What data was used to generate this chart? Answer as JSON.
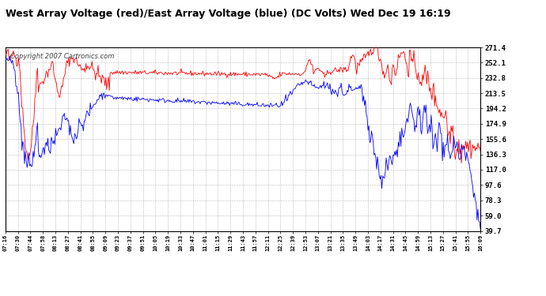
{
  "title": "West Array Voltage (red)/East Array Voltage (blue) (DC Volts) Wed Dec 19 16:19",
  "copyright": "Copyright 2007 Cartronics.com",
  "yticks": [
    39.7,
    59.0,
    78.3,
    97.6,
    117.0,
    136.3,
    155.6,
    174.9,
    194.2,
    213.5,
    232.8,
    252.1,
    271.4
  ],
  "ylim": [
    39.7,
    271.4
  ],
  "xtick_labels": [
    "07:16",
    "07:30",
    "07:44",
    "07:58",
    "08:13",
    "08:27",
    "08:41",
    "08:55",
    "09:09",
    "09:23",
    "09:37",
    "09:51",
    "10:05",
    "10:19",
    "10:33",
    "10:47",
    "11:01",
    "11:15",
    "11:29",
    "11:43",
    "11:57",
    "12:11",
    "12:25",
    "12:39",
    "12:53",
    "13:07",
    "13:21",
    "13:35",
    "13:49",
    "14:03",
    "14:17",
    "14:31",
    "14:45",
    "14:59",
    "15:13",
    "15:27",
    "15:41",
    "15:55",
    "16:09"
  ],
  "title_fontsize": 9,
  "copyright_fontsize": 6,
  "bg_color": "#ffffff",
  "plot_bg_color": "#ffffff",
  "grid_color": "#bbbbbb",
  "red_color": "#ff0000",
  "blue_color": "#0000ff",
  "title_color": "#000000",
  "tick_label_color": "#000000"
}
